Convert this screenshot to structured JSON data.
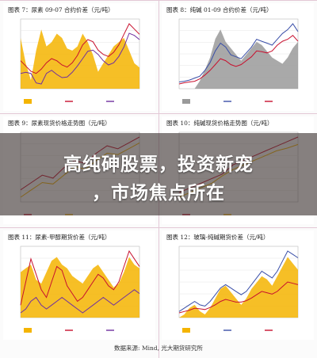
{
  "headline": {
    "line1": "高纯砷股票，投资新宠",
    "line2": "，市场焦点所在"
  },
  "source_note": "数据来源: Mind, 光大期货研究所",
  "colors": {
    "fill": "#f4b400",
    "red": "#c8102e",
    "blue": "#3a4fa8",
    "purple": "#7030a0",
    "gray": "#9a9a9a"
  },
  "chart_data": [
    {
      "id": "fig7",
      "type": "area",
      "title": "图表 7：尿素 09-07 合约价差（元/吨）",
      "series": [
        {
          "kind": "area",
          "color": "#f4b400",
          "values": [
            120,
            60,
            20,
            90,
            140,
            100,
            110,
            130,
            120,
            95,
            90,
            100,
            130,
            110,
            80,
            40,
            60,
            80,
            100,
            110,
            120,
            90,
            60,
            50
          ]
        },
        {
          "kind": "line",
          "color": "#c8102e",
          "values": [
            1900,
            1850,
            1800,
            1780,
            1820,
            1880,
            1920,
            1900,
            1860,
            1840,
            1880,
            1950,
            2050,
            2100,
            2080,
            2000,
            1960,
            1940,
            1980,
            2050,
            2150,
            2250,
            2200,
            2150
          ]
        },
        {
          "kind": "line",
          "color": "#7030a0",
          "values": [
            1780,
            1790,
            1780,
            1690,
            1680,
            1780,
            1810,
            1770,
            1740,
            1745,
            1790,
            1850,
            1920,
            1990,
            2000,
            1960,
            1900,
            1860,
            1880,
            1940,
            2030,
            2160,
            2140,
            2100
          ]
        }
      ]
    },
    {
      "id": "fig8",
      "type": "area",
      "title": "图表 8：纯碱 01-09 合约价差（元/吨）",
      "series": [
        {
          "kind": "area",
          "color": "#9a9a9a",
          "values": [
            0,
            0,
            0,
            0,
            50,
            120,
            200,
            320,
            380,
            300,
            260,
            220,
            180,
            220,
            260,
            300,
            280,
            240,
            200,
            180,
            160,
            200,
            260,
            300
          ]
        },
        {
          "kind": "line",
          "color": "#3a4fa8",
          "values": [
            1600,
            1620,
            1650,
            1700,
            1750,
            1900,
            2100,
            2400,
            2600,
            2500,
            2300,
            2250,
            2200,
            2350,
            2500,
            2700,
            2650,
            2600,
            2550,
            2700,
            2850,
            2950,
            3100,
            2900
          ]
        },
        {
          "kind": "line",
          "color": "#c8102e",
          "values": [
            1550,
            1580,
            1600,
            1620,
            1680,
            1780,
            1900,
            2050,
            2200,
            2150,
            2050,
            2000,
            2050,
            2150,
            2250,
            2400,
            2380,
            2350,
            2400,
            2550,
            2650,
            2700,
            2800,
            2650
          ]
        }
      ]
    },
    {
      "id": "fig9",
      "type": "line",
      "title": "图表 9：尿素现货价格走势图（元/吨）",
      "series": [
        {
          "kind": "line",
          "color": "#c8102e",
          "values": [
            2100,
            2150,
            2200,
            2180,
            2250,
            2300,
            2280,
            2350,
            2400,
            2380,
            2420,
            2460
          ]
        },
        {
          "kind": "line",
          "color": "#f4b400",
          "values": [
            2050,
            2100,
            2150,
            2140,
            2200,
            2260,
            2240,
            2300,
            2350,
            2340,
            2380,
            2420
          ]
        }
      ]
    },
    {
      "id": "fig10",
      "type": "line",
      "title": "图表 10：纯碱现货价格走势图（元/吨）",
      "series": [
        {
          "kind": "line",
          "color": "#c8102e",
          "values": [
            1800,
            1850,
            1900,
            1950,
            2000,
            2100,
            2150,
            2200,
            2250,
            2300,
            2350,
            2400
          ]
        },
        {
          "kind": "line",
          "color": "#f4b400",
          "values": [
            1750,
            1800,
            1850,
            1900,
            1980,
            2050,
            2100,
            2150,
            2200,
            2250,
            2280,
            2320
          ]
        }
      ]
    },
    {
      "id": "fig11",
      "type": "area",
      "title": "图表 11：尿素-甲醇期货价差（元/吨）",
      "series": [
        {
          "kind": "area",
          "color": "#f4b400",
          "values": [
            600,
            650,
            700,
            500,
            450,
            600,
            750,
            800,
            700,
            650,
            550,
            500,
            450,
            550,
            650,
            700,
            600,
            500,
            400,
            450,
            600,
            800,
            700,
            650
          ]
        },
        {
          "kind": "line",
          "color": "#c8102e",
          "values": [
            1600,
            1900,
            2200,
            2000,
            1800,
            1700,
            1900,
            2100,
            2050,
            1850,
            1750,
            1650,
            1700,
            1800,
            1900,
            2000,
            1950,
            1850,
            1800,
            1900,
            2100,
            2300,
            2200,
            2100
          ]
        },
        {
          "kind": "line",
          "color": "#7030a0",
          "values": [
            1500,
            1550,
            1650,
            1700,
            1600,
            1550,
            1600,
            1650,
            1700,
            1650,
            1600,
            1550,
            1500,
            1550,
            1600,
            1650,
            1700,
            1650,
            1600,
            1650,
            1700,
            1750,
            1800,
            1750
          ]
        }
      ]
    },
    {
      "id": "fig12",
      "type": "area",
      "title": "图表 12：玻璃-纯碱期货价差（元/吨）",
      "series": [
        {
          "kind": "area",
          "color": "#f4b400",
          "values": [
            0,
            20,
            60,
            80,
            40,
            20,
            60,
            120,
            180,
            200,
            160,
            120,
            80,
            120,
            180,
            220,
            260,
            240,
            200,
            260,
            320,
            380,
            340,
            300
          ]
        },
        {
          "kind": "line",
          "color": "#3a4fa8",
          "values": [
            1500,
            1550,
            1600,
            1650,
            1600,
            1580,
            1650,
            1750,
            1850,
            1900,
            1850,
            1800,
            1750,
            1800,
            1900,
            2000,
            2100,
            2050,
            2000,
            2100,
            2250,
            2400,
            2350,
            2300
          ]
        },
        {
          "kind": "line",
          "color": "#c8102e",
          "values": [
            1480,
            1500,
            1520,
            1550,
            1540,
            1530,
            1560,
            1600,
            1650,
            1680,
            1660,
            1640,
            1640,
            1660,
            1700,
            1750,
            1800,
            1780,
            1760,
            1800,
            1870,
            1940,
            1920,
            1900
          ]
        }
      ]
    }
  ]
}
